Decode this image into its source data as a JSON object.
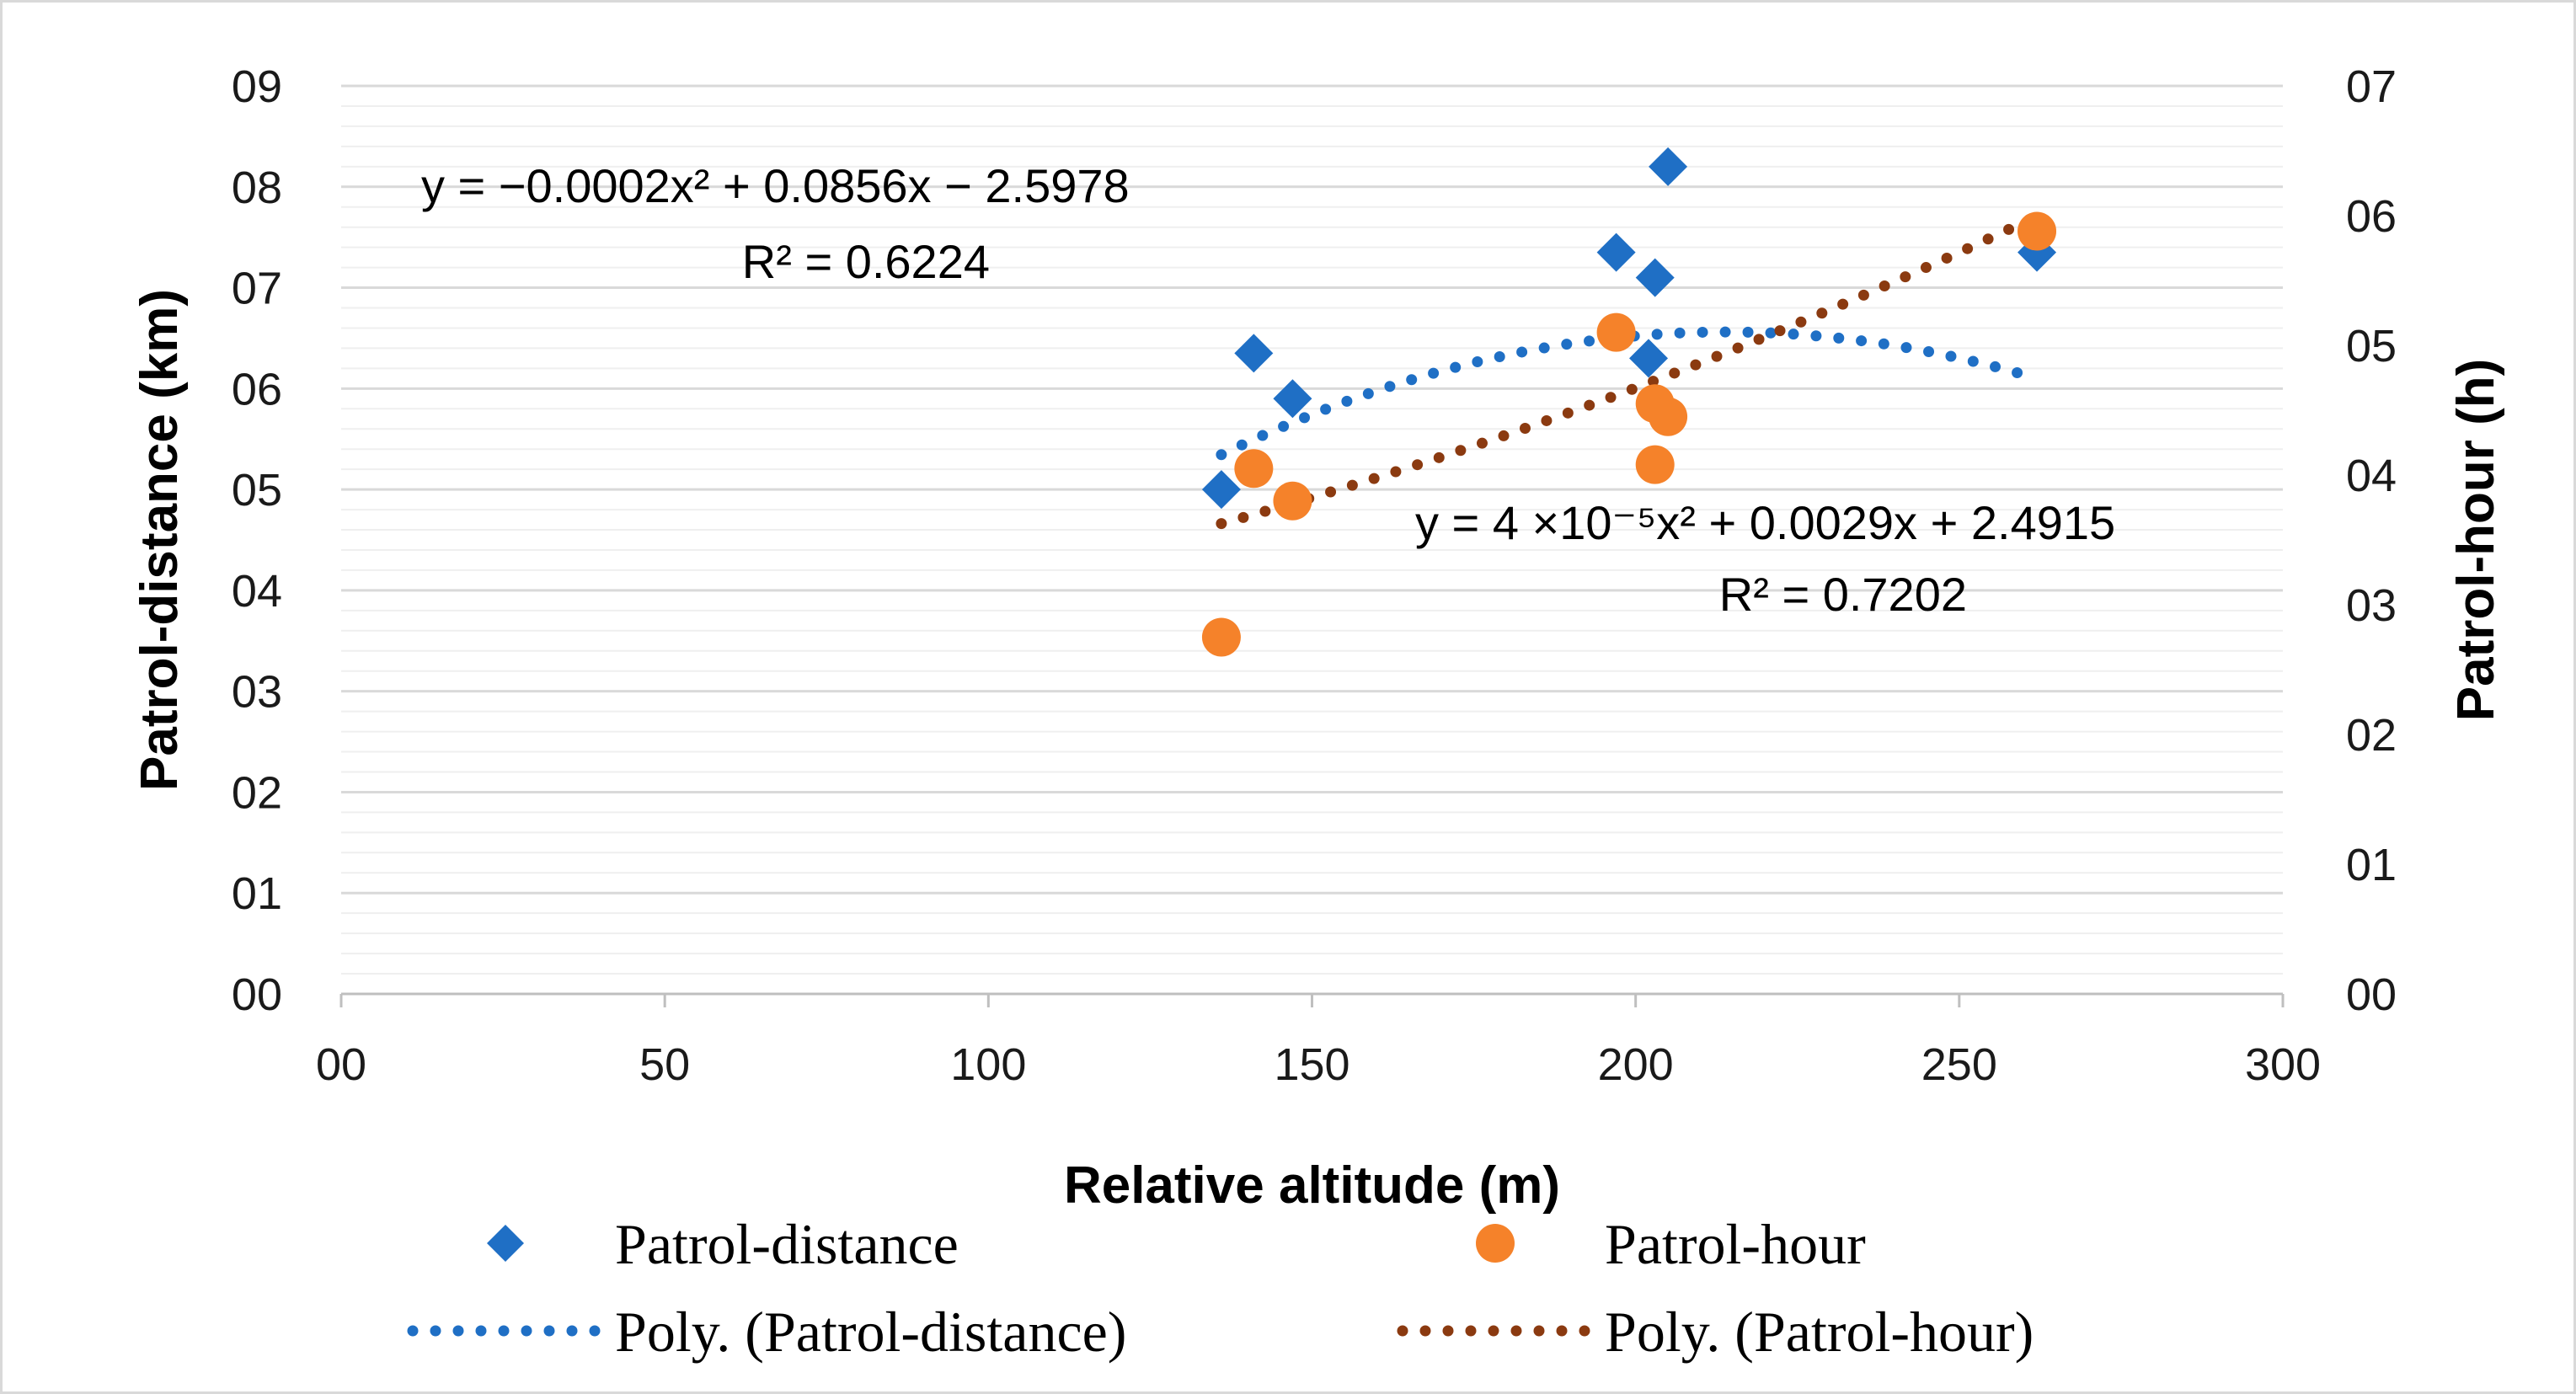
{
  "chart_data": {
    "type": "scatter",
    "xlabel": "Relative altitude (m)",
    "ylabel_left": "Patrol-distance (km)",
    "ylabel_right": "Patrol-hour (h)",
    "xlim": [
      0,
      300
    ],
    "ylim_left": [
      0,
      9
    ],
    "ylim_right": [
      0,
      7
    ],
    "x_ticks": [
      "00",
      "50",
      "100",
      "150",
      "200",
      "250",
      "300"
    ],
    "y_left_ticks": [
      "00",
      "01",
      "02",
      "03",
      "04",
      "05",
      "06",
      "07",
      "08",
      "09"
    ],
    "y_right_ticks": [
      "00",
      "01",
      "02",
      "03",
      "04",
      "05",
      "06",
      "07"
    ],
    "grid": true,
    "series": [
      {
        "name": "Patrol-distance",
        "axis": "left",
        "marker": "diamond",
        "color": "#1f6fc5",
        "points": [
          {
            "x": 136,
            "y": 5.0
          },
          {
            "x": 141,
            "y": 6.35
          },
          {
            "x": 147,
            "y": 5.9
          },
          {
            "x": 197,
            "y": 7.35
          },
          {
            "x": 202,
            "y": 6.3
          },
          {
            "x": 203,
            "y": 7.1
          },
          {
            "x": 205,
            "y": 8.2
          },
          {
            "x": 262,
            "y": 7.35
          }
        ]
      },
      {
        "name": "Patrol-hour",
        "axis": "right",
        "marker": "circle",
        "color": "#f5822a",
        "points": [
          {
            "x": 136,
            "y": 2.75
          },
          {
            "x": 141,
            "y": 4.05
          },
          {
            "x": 147,
            "y": 3.8
          },
          {
            "x": 197,
            "y": 5.1
          },
          {
            "x": 203,
            "y": 4.55
          },
          {
            "x": 203,
            "y": 4.08
          },
          {
            "x": 205,
            "y": 4.45
          },
          {
            "x": 262,
            "y": 5.88
          }
        ]
      }
    ],
    "trendlines": [
      {
        "name": "Poly. (Patrol-distance)",
        "axis": "left",
        "color": "#1f6fc5",
        "coefficients": {
          "a": -0.0002,
          "b": 0.0856,
          "c": -2.5978
        },
        "x_range": [
          136,
          262
        ],
        "equation": "y = −0.0002x² + 0.0856x − 2.5978",
        "r2": "R² = 0.6224"
      },
      {
        "name": "Poly. (Patrol-hour)",
        "axis": "right",
        "color": "#8b3a10",
        "coefficients": {
          "a": 4e-05,
          "b": 0.0029,
          "c": 2.4915
        },
        "x_range": [
          136,
          262
        ],
        "equation": "y = 4 ×10⁻⁵x² + 0.0029x + 2.4915",
        "r2": "R² = 0.7202"
      }
    ],
    "legend": [
      {
        "label": "Patrol-distance",
        "symbol": "diamond",
        "color": "#1f6fc5"
      },
      {
        "label": "Patrol-hour",
        "symbol": "circle",
        "color": "#f5822a"
      },
      {
        "label": "Poly. (Patrol-distance)",
        "symbol": "dotted-line",
        "color": "#1f6fc5"
      },
      {
        "label": "Poly. (Patrol-hour)",
        "symbol": "dotted-line",
        "color": "#8b3a10"
      }
    ],
    "legend_position": "bottom"
  }
}
